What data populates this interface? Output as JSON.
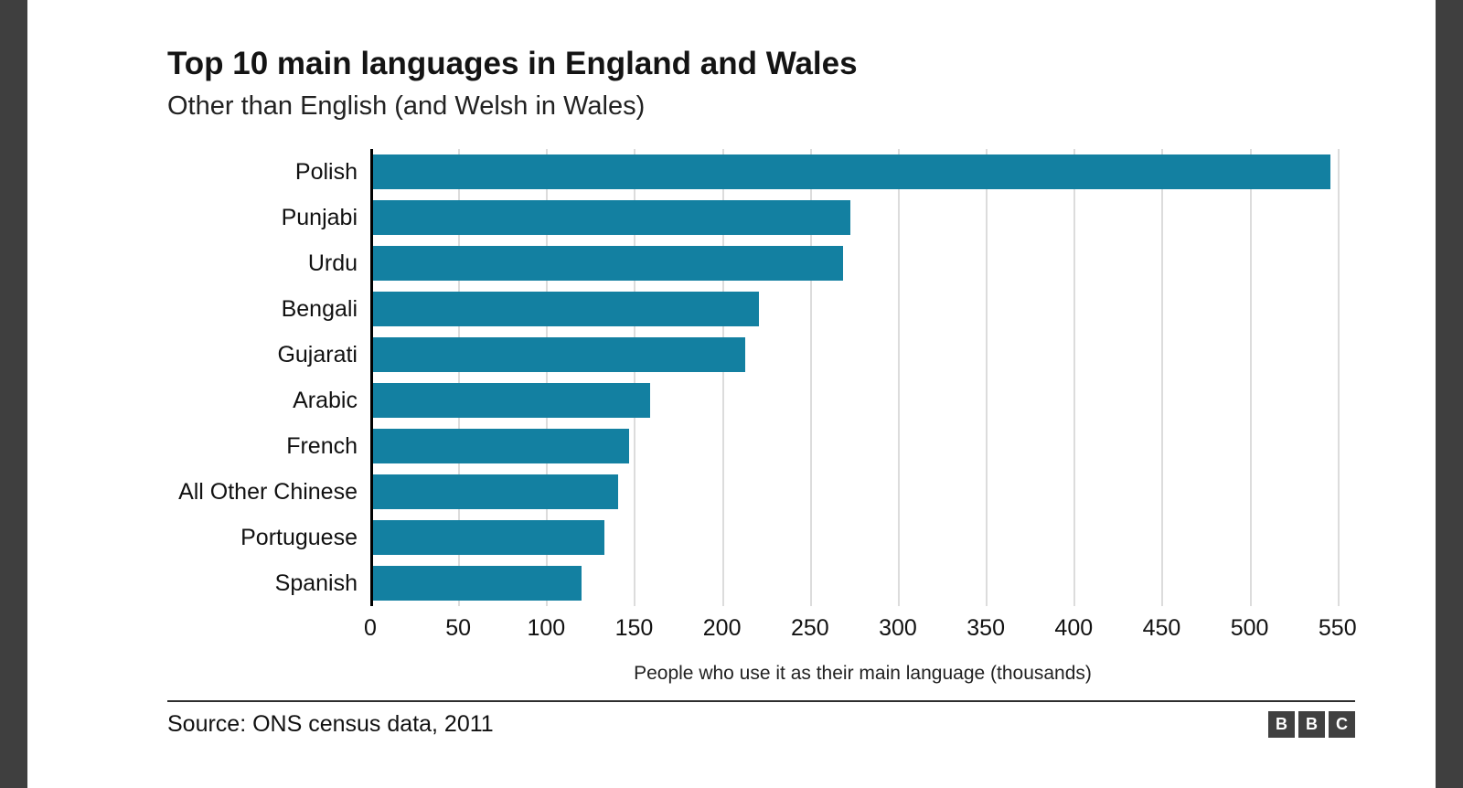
{
  "header": {
    "title": "Top 10 main languages in England and Wales",
    "subtitle": "Other than English (and Welsh in Wales)"
  },
  "chart_data": {
    "type": "bar",
    "orientation": "horizontal",
    "categories": [
      "Polish",
      "Punjabi",
      "Urdu",
      "Bengali",
      "Gujarati",
      "Arabic",
      "French",
      "All Other Chinese",
      "Portuguese",
      "Spanish"
    ],
    "values": [
      546,
      273,
      269,
      221,
      213,
      159,
      147,
      141,
      133,
      120
    ],
    "title": "Top 10 main languages in England and Wales",
    "subtitle": "Other than English (and Welsh in Wales)",
    "xlabel": "People who use it as their main language (thousands)",
    "ylabel": "",
    "xlim": [
      0,
      560
    ],
    "ticks": [
      0,
      50,
      100,
      150,
      200,
      250,
      300,
      350,
      400,
      450,
      500,
      550
    ],
    "grid": true,
    "bar_color": "#1380A1",
    "gridline_color": "#dcdcdc"
  },
  "footer": {
    "source": "Source: ONS census data, 2011",
    "logo_letters": [
      "B",
      "B",
      "C"
    ]
  }
}
